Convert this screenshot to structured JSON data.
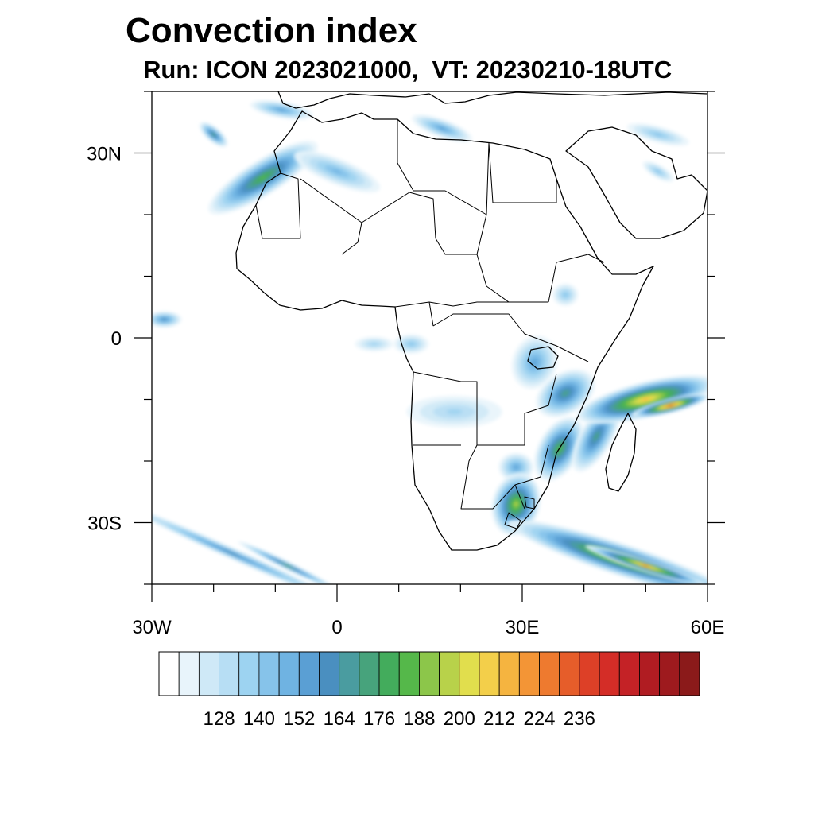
{
  "title": "Convection index",
  "subtitle": "Run: ICON 2023021000,  VT: 20230210-18UTC",
  "map": {
    "lon_range": [
      -30,
      60
    ],
    "lat_range": [
      -40,
      40
    ],
    "lon_ticks": [
      {
        "lon": -30,
        "label": "30W"
      },
      {
        "lon": 0,
        "label": "0"
      },
      {
        "lon": 30,
        "label": "30E"
      },
      {
        "lon": 60,
        "label": "60E"
      }
    ],
    "lat_ticks": [
      {
        "lat": 30,
        "label": "30N"
      },
      {
        "lat": 0,
        "label": "0"
      },
      {
        "lat": -30,
        "label": "30S"
      }
    ],
    "minor_lon_step": 10,
    "minor_lat_step": 10
  },
  "colorbar": {
    "colors": [
      "#ffffff",
      "#e8f4fb",
      "#cfe9f7",
      "#b7def4",
      "#9dd3f1",
      "#86c3ea",
      "#6fb3e2",
      "#5a9fd4",
      "#4a8fc0",
      "#4a9ca0",
      "#47a37c",
      "#43ac5c",
      "#55b84a",
      "#8cc64a",
      "#b8d24a",
      "#e1de4d",
      "#f3cf4a",
      "#f5b440",
      "#f39536",
      "#ee7a2f",
      "#e65d2a",
      "#dd4027",
      "#d42d27",
      "#c42226",
      "#b01c22",
      "#9e1a1e",
      "#8b1a1a"
    ],
    "labels": [
      "128",
      "140",
      "152",
      "164",
      "176",
      "188",
      "200",
      "212",
      "224",
      "236"
    ]
  },
  "fields": [
    {
      "name": "nw-africa-band",
      "lon": -12,
      "lat": 26,
      "rx": 80,
      "ry": 22,
      "rot": -32,
      "level": 12
    },
    {
      "name": "canary-cell",
      "lon": -20,
      "lat": 33,
      "rx": 22,
      "ry": 9,
      "rot": 40,
      "level": 10
    },
    {
      "name": "morocco-north",
      "lon": -9,
      "lat": 37,
      "rx": 40,
      "ry": 10,
      "rot": 10,
      "level": 7
    },
    {
      "name": "algeria-band",
      "lon": 0,
      "lat": 27,
      "rx": 58,
      "ry": 16,
      "rot": 22,
      "level": 6
    },
    {
      "name": "mediterranean",
      "lon": 17,
      "lat": 34,
      "rx": 40,
      "ry": 11,
      "rot": 20,
      "level": 7
    },
    {
      "name": "arabia-north",
      "lon": 52,
      "lat": 33,
      "rx": 40,
      "ry": 10,
      "rot": 15,
      "level": 5
    },
    {
      "name": "arabia-south",
      "lon": 52,
      "lat": 27,
      "rx": 22,
      "ry": 8,
      "rot": 30,
      "level": 5
    },
    {
      "name": "atlantic-eq",
      "lon": -28,
      "lat": 3,
      "rx": 22,
      "ry": 10,
      "rot": 0,
      "level": 8
    },
    {
      "name": "gulf-guinea",
      "lon": 6,
      "lat": -1,
      "rx": 24,
      "ry": 9,
      "rot": 0,
      "level": 4
    },
    {
      "name": "gabon",
      "lon": 12,
      "lat": -1,
      "rx": 22,
      "ry": 12,
      "rot": 0,
      "level": 5
    },
    {
      "name": "ethiopia",
      "lon": 37,
      "lat": 7,
      "rx": 16,
      "ry": 14,
      "rot": 0,
      "level": 5
    },
    {
      "name": "lake-victoria",
      "lon": 32,
      "lat": -4,
      "rx": 28,
      "ry": 34,
      "rot": 20,
      "level": 7
    },
    {
      "name": "tanzania-band",
      "lon": 37,
      "lat": -9,
      "rx": 40,
      "ry": 26,
      "rot": -30,
      "level": 10
    },
    {
      "name": "angola-congo",
      "lon": 19,
      "lat": -12,
      "rx": 60,
      "ry": 20,
      "rot": 0,
      "level": 4
    },
    {
      "name": "mozambique",
      "lon": 36,
      "lat": -18,
      "rx": 26,
      "ry": 44,
      "rot": 30,
      "level": 12
    },
    {
      "name": "zimbabwe",
      "lon": 29,
      "lat": -21,
      "rx": 22,
      "ry": 18,
      "rot": 0,
      "level": 7
    },
    {
      "name": "south-africa-east",
      "lon": 29,
      "lat": -27,
      "rx": 30,
      "ry": 40,
      "rot": 15,
      "level": 14
    },
    {
      "name": "madagascar-channel",
      "lon": 42,
      "lat": -16,
      "rx": 20,
      "ry": 50,
      "rot": 30,
      "level": 10
    },
    {
      "name": "indian-ocean-band",
      "lon": 50,
      "lat": -10,
      "rx": 90,
      "ry": 22,
      "rot": -14,
      "level": 17
    },
    {
      "name": "indian-ocean-core",
      "lon": 54,
      "lat": -11,
      "rx": 50,
      "ry": 9,
      "rot": -14,
      "level": 20
    },
    {
      "name": "southern-ocean-band",
      "lon": 46,
      "lat": -36,
      "rx": 150,
      "ry": 20,
      "rot": 18,
      "level": 15
    },
    {
      "name": "southern-ocean-core",
      "lon": 50,
      "lat": -37,
      "rx": 80,
      "ry": 8,
      "rot": 18,
      "level": 18
    },
    {
      "name": "south-atlantic-streak",
      "lon": -17,
      "lat": -35,
      "rx": 150,
      "ry": 7,
      "rot": 24,
      "level": 8
    },
    {
      "name": "south-atlantic-streak-2",
      "lon": -8,
      "lat": -37,
      "rx": 70,
      "ry": 5,
      "rot": 26,
      "level": 10
    }
  ]
}
